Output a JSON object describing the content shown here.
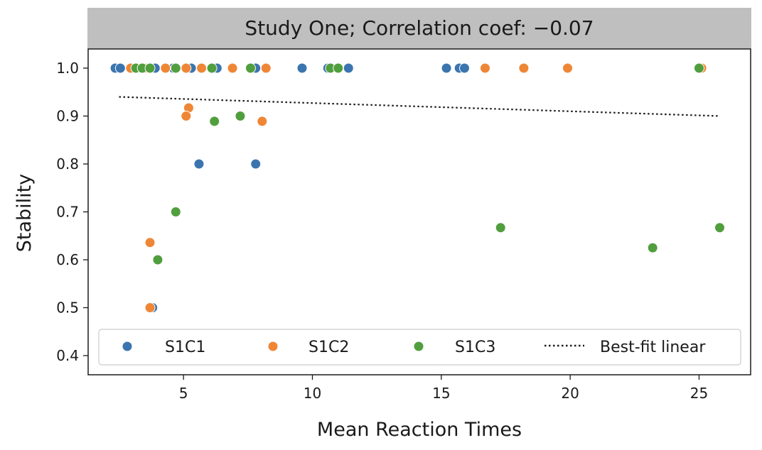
{
  "chart_data": {
    "type": "scatter",
    "title": "Study One; Correlation coef: −0.07",
    "xlabel": "Mean Reaction Times",
    "ylabel": "Stability",
    "xlim": [
      1.3,
      27.0
    ],
    "ylim": [
      0.36,
      1.04
    ],
    "xticks": [
      5,
      10,
      15,
      20,
      25
    ],
    "yticks": [
      0.4,
      0.5,
      0.6,
      0.7,
      0.8,
      0.9,
      1.0
    ],
    "ytick_labels": [
      "0.4",
      "0.5",
      "0.6",
      "0.7",
      "0.8",
      "0.9",
      "1.0"
    ],
    "colors": {
      "S1C1": "#3b75af",
      "S1C2": "#ef8636",
      "S1C3": "#519e3e",
      "title_bg": "#bfbfbf"
    },
    "series": [
      {
        "name": "S1C1",
        "color": "#3b75af",
        "points": [
          [
            2.35,
            1.0
          ],
          [
            2.55,
            1.0
          ],
          [
            3.9,
            1.0
          ],
          [
            4.6,
            1.0
          ],
          [
            5.3,
            1.0
          ],
          [
            6.3,
            1.0
          ],
          [
            7.8,
            1.0
          ],
          [
            9.6,
            1.0
          ],
          [
            10.6,
            1.0
          ],
          [
            11.4,
            1.0
          ],
          [
            15.2,
            1.0
          ],
          [
            15.7,
            1.0
          ],
          [
            15.9,
            1.0
          ],
          [
            5.6,
            0.8
          ],
          [
            7.8,
            0.8
          ],
          [
            3.8,
            0.5
          ]
        ]
      },
      {
        "name": "S1C2",
        "color": "#ef8636",
        "points": [
          [
            2.95,
            1.0
          ],
          [
            3.5,
            1.0
          ],
          [
            4.3,
            1.0
          ],
          [
            5.1,
            1.0
          ],
          [
            5.7,
            1.0
          ],
          [
            6.9,
            1.0
          ],
          [
            8.2,
            1.0
          ],
          [
            16.7,
            1.0
          ],
          [
            18.2,
            1.0
          ],
          [
            19.9,
            1.0
          ],
          [
            25.1,
            1.0
          ],
          [
            5.2,
            0.917
          ],
          [
            5.1,
            0.9
          ],
          [
            8.05,
            0.889
          ],
          [
            3.7,
            0.636
          ],
          [
            3.7,
            0.5
          ]
        ]
      },
      {
        "name": "S1C3",
        "color": "#519e3e",
        "points": [
          [
            3.15,
            1.0
          ],
          [
            3.4,
            1.0
          ],
          [
            3.7,
            1.0
          ],
          [
            4.7,
            1.0
          ],
          [
            6.1,
            1.0
          ],
          [
            7.6,
            1.0
          ],
          [
            10.7,
            1.0
          ],
          [
            11.0,
            1.0
          ],
          [
            25.0,
            1.0
          ],
          [
            6.2,
            0.889
          ],
          [
            7.2,
            0.9
          ],
          [
            4.7,
            0.7
          ],
          [
            4.0,
            0.6
          ],
          [
            17.3,
            0.667
          ],
          [
            23.2,
            0.625
          ],
          [
            25.8,
            0.667
          ]
        ]
      }
    ],
    "fit_line": {
      "name": "Best-fit linear",
      "x": [
        2.5,
        25.8
      ],
      "y": [
        0.94,
        0.9
      ],
      "style": "dotted"
    },
    "legend": {
      "placement": "lower center",
      "entries": [
        "S1C1",
        "S1C2",
        "S1C3",
        "Best-fit linear"
      ]
    }
  }
}
